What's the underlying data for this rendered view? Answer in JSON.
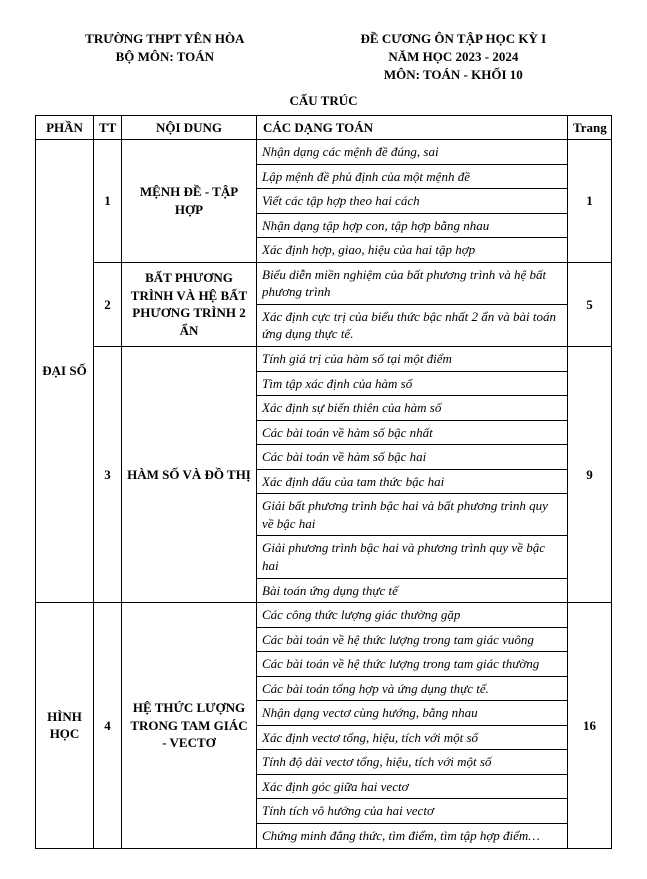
{
  "header": {
    "school": "TRƯỜNG THPT YÊN HÒA",
    "dept": "BỘ MÔN: TOÁN",
    "title1": "ĐỀ CƯƠNG ÔN TẬP HỌC KỲ I",
    "title2": "NĂM HỌC 2023 - 2024",
    "title3": "MÔN: TOÁN - KHỐI 10",
    "structure": "CẤU TRÚC"
  },
  "columns": {
    "phan": "PHẦN",
    "tt": "TT",
    "noidung": "NỘI DUNG",
    "dang": "CÁC DẠNG TOÁN",
    "trang": "Trang"
  },
  "parts": [
    {
      "name": "ĐẠI SỐ",
      "chapters": [
        {
          "tt": "1",
          "title": "MỆNH ĐỀ - TẬP HỢP",
          "trang": "1",
          "topics": [
            "Nhận dạng các mệnh đề đúng, sai",
            "Lập mệnh đề phủ định của một mệnh đề",
            "Viết các tập hợp theo hai cách",
            "Nhận dạng tập hợp con, tập hợp bằng nhau",
            "Xác định hợp, giao, hiệu của hai tập hợp"
          ]
        },
        {
          "tt": "2",
          "title": "BẤT PHƯƠNG TRÌNH VÀ HỆ BẤT PHƯƠNG TRÌNH 2 ẨN",
          "trang": "5",
          "topics": [
            "Biểu diễn miền nghiệm của bất phương trình và hệ bất phương trình",
            "Xác định cực trị của biểu thức bậc nhất 2 ẩn và bài toán ứng dụng thực tế."
          ]
        },
        {
          "tt": "3",
          "title": "HÀM SỐ VÀ ĐỒ THỊ",
          "trang": "9",
          "topics": [
            "Tính giá trị của hàm số tại một điểm",
            "Tìm tập xác định của hàm số",
            "Xác định sự biến thiên của hàm số",
            "Các bài toán về hàm số bậc nhất",
            "Các bài toán về hàm số bậc hai",
            "Xác định dấu của tam thức bậc hai",
            "Giải bất phương trình bậc hai và bất phương trình quy về bậc hai",
            "Giải phương trình bậc hai và phương trình quy về bậc hai",
            "Bài toán ứng dụng thực tế"
          ]
        }
      ]
    },
    {
      "name": "HÌNH HỌC",
      "chapters": [
        {
          "tt": "4",
          "title": "HỆ THỨC LƯỢNG TRONG TAM GIÁC - VECTƠ",
          "trang": "16",
          "topics": [
            "Các công thức lượng giác thường gặp",
            "Các bài toán về hệ thức lượng trong tam giác vuông",
            "Các bài toán về hệ thức lượng trong tam giác thường",
            "Các bài toán tổng hợp và ứng dụng thực tế.",
            "Nhận dạng vectơ cùng hướng, bằng nhau",
            "Xác định vectơ tổng, hiệu, tích với một số",
            "Tính độ dài vectơ tổng, hiệu, tích với một số",
            "Xác định góc giữa hai vectơ",
            "Tính tích vô hướng của hai vectơ",
            "Chứng minh đẳng thức, tìm điểm, tìm tập hợp điểm…"
          ]
        }
      ]
    }
  ]
}
